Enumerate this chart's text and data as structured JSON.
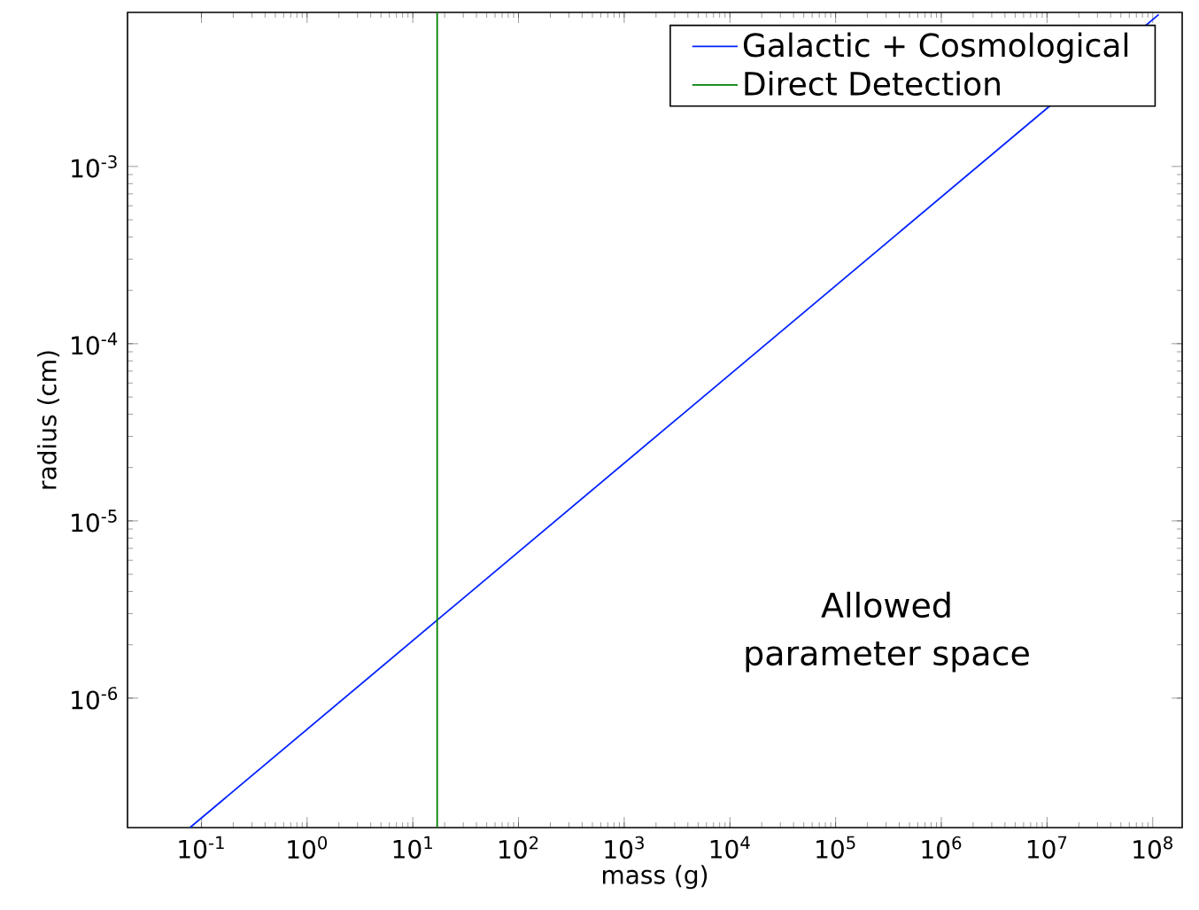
{
  "chart_data": {
    "type": "line",
    "xlabel": "mass (g)",
    "ylabel": "radius (cm)",
    "log": "xy",
    "xlim": [
      0.02,
      190000000.0
    ],
    "ylim": [
      1.86e-07,
      0.0074
    ],
    "xticks": [
      {
        "value": 0.1,
        "label": "10$^{-1}$"
      },
      {
        "value": 1,
        "label": "10$^{0}$"
      },
      {
        "value": 10,
        "label": "10$^{1}$"
      },
      {
        "value": 100,
        "label": "10$^{2}$"
      },
      {
        "value": 1000,
        "label": "10$^{3}$"
      },
      {
        "value": 10000,
        "label": "10$^{4}$"
      },
      {
        "value": 100000,
        "label": "10$^{5}$"
      },
      {
        "value": 1000000,
        "label": "10$^{6}$"
      },
      {
        "value": 10000000,
        "label": "10$^{7}$"
      },
      {
        "value": 100000000,
        "label": "10$^{8}$"
      }
    ],
    "yticks": [
      {
        "value": 1e-06,
        "label": "10$^{-6}$"
      },
      {
        "value": 1e-05,
        "label": "10$^{-5}$"
      },
      {
        "value": 0.0001,
        "label": "10$^{-4}$"
      },
      {
        "value": 0.001,
        "label": "10$^{-3}$"
      }
    ],
    "series": [
      {
        "name": "Galactic + Cosmological",
        "color": "#0022ff",
        "x": [
          0.078,
          114000000.0
        ],
        "values": [
          1.86e-07,
          0.0072
        ]
      },
      {
        "name": "Direct Detection",
        "color": "#008000",
        "x": [
          17,
          17
        ],
        "values": [
          1.86e-07,
          0.0074
        ]
      }
    ],
    "annotations": [
      "Allowed parameter space"
    ],
    "legend": "top right",
    "grid": false,
    "marker": "none",
    "line_style": "solid"
  }
}
